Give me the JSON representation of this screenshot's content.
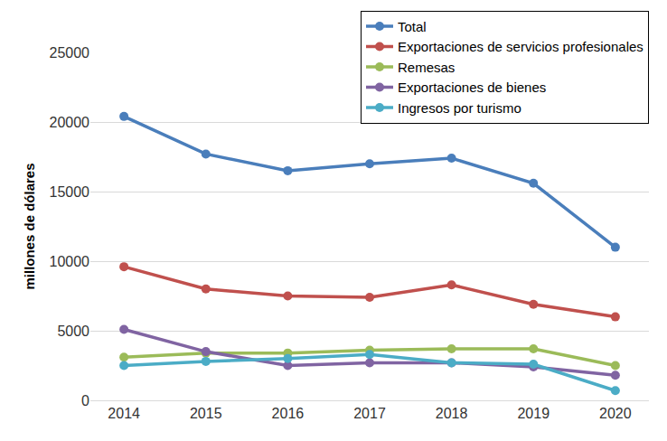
{
  "chart_data": {
    "type": "line",
    "y_label": "millones de dólares",
    "categories": [
      "2014",
      "2015",
      "2016",
      "2017",
      "2018",
      "2019",
      "2020"
    ],
    "series": [
      {
        "name": "Total",
        "color": "#4a7ebb",
        "values": [
          20400,
          17700,
          16500,
          17000,
          17400,
          15600,
          11000
        ]
      },
      {
        "name": "Exportaciones de servicios profesionales",
        "color": "#c0504d",
        "values": [
          9600,
          8000,
          7500,
          7400,
          8300,
          6900,
          6000
        ]
      },
      {
        "name": "Remesas",
        "color": "#9bbb59",
        "values": [
          3100,
          3400,
          3400,
          3600,
          3700,
          3700,
          2500
        ]
      },
      {
        "name": "Exportaciones de bienes",
        "color": "#8064a2",
        "values": [
          5100,
          3500,
          2500,
          2700,
          2700,
          2400,
          1800
        ]
      },
      {
        "name": "Ingresos por turismo",
        "color": "#4bacc6",
        "values": [
          2500,
          2800,
          3000,
          3300,
          2700,
          2600,
          700
        ]
      }
    ],
    "ylim": [
      0,
      25000
    ],
    "yticks": [
      0,
      5000,
      10000,
      15000,
      20000,
      25000
    ],
    "grid": true,
    "legend": "top right",
    "marker": "circle"
  }
}
